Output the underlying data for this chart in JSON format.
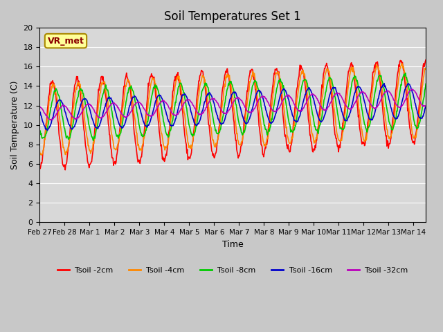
{
  "title": "Soil Temperatures Set 1",
  "xlabel": "Time",
  "ylabel": "Soil Temperature (C)",
  "ylim": [
    0,
    20
  ],
  "yticks": [
    0,
    2,
    4,
    6,
    8,
    10,
    12,
    14,
    16,
    18,
    20
  ],
  "x_labels": [
    "Feb 27",
    "Feb 28",
    "Mar 1",
    "Mar 2",
    "Mar 3",
    "Mar 4",
    "Mar 5",
    "Mar 6",
    "Mar 7",
    "Mar 8",
    "Mar 9",
    "Mar 10",
    "Mar 11",
    "Mar 12",
    "Mar 13",
    "Mar 14"
  ],
  "fig_bg_color": "#c8c8c8",
  "ax_bg_color": "#d8d8d8",
  "series_colors": [
    "#ff0000",
    "#ff8800",
    "#00cc00",
    "#0000cc",
    "#bb00bb"
  ],
  "series_labels": [
    "Tsoil -2cm",
    "Tsoil -4cm",
    "Tsoil -8cm",
    "Tsoil -16cm",
    "Tsoil -32cm"
  ],
  "vr_met_label": "VR_met",
  "annotation_bg": "#ffff99",
  "annotation_border": "#aa8800",
  "n_days": 15.5,
  "points_per_day": 48
}
